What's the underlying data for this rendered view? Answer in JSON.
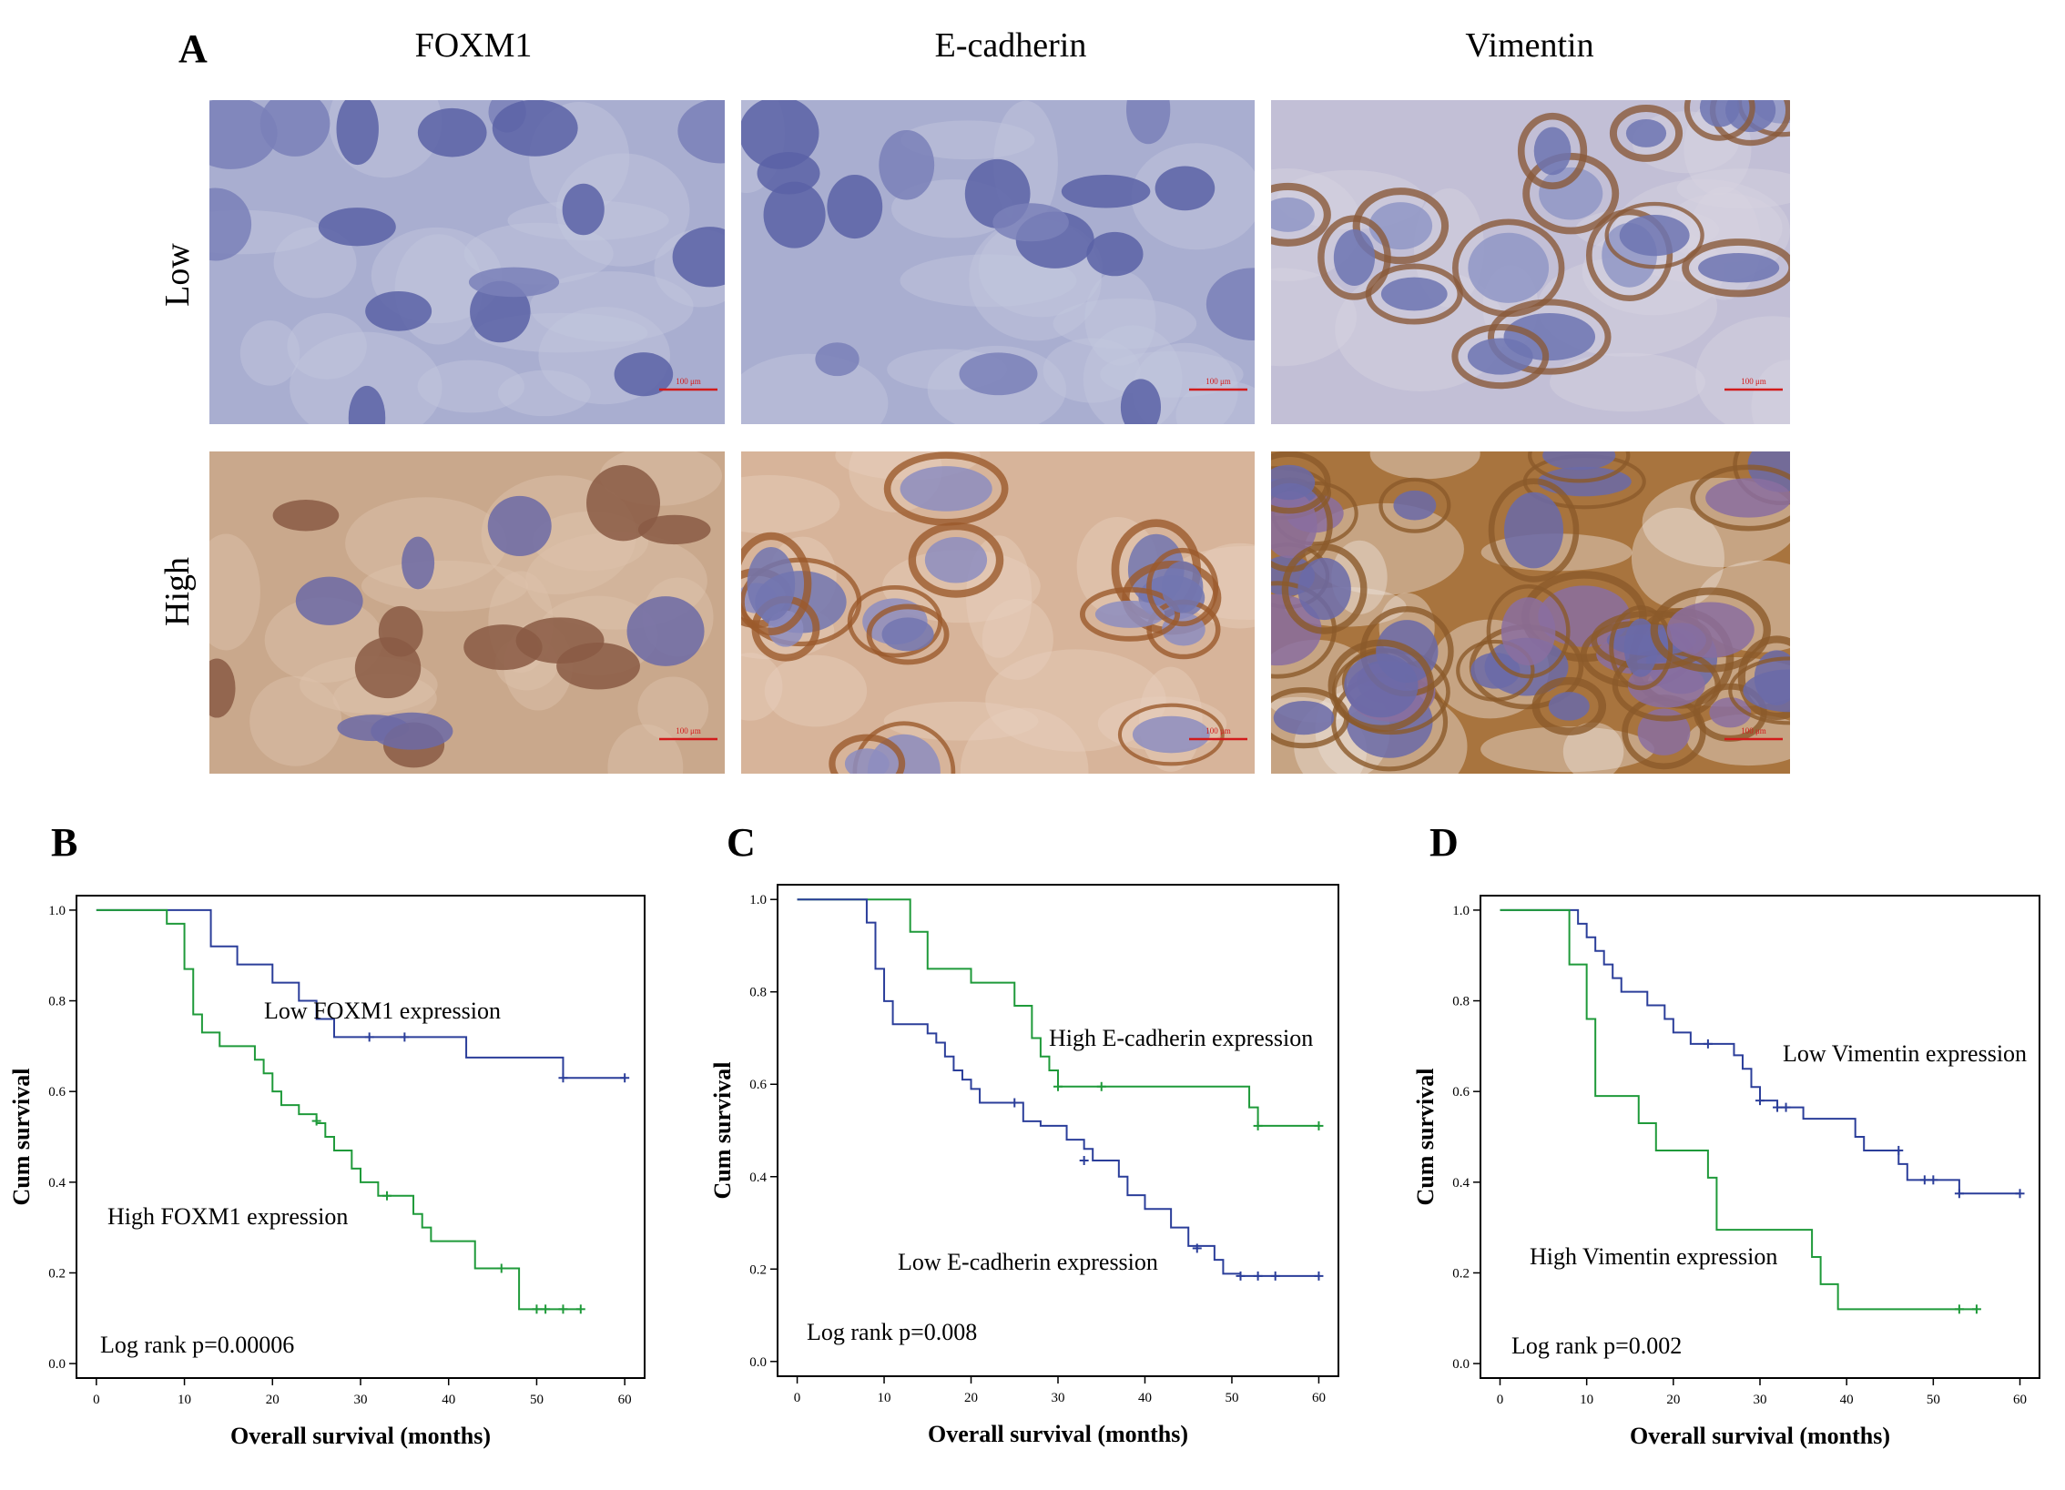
{
  "panel_a": {
    "label": "A",
    "columns": [
      "FOXM1",
      "E-cadherin",
      "Vimentin"
    ],
    "rows": [
      "Low",
      "High"
    ],
    "scale_bar_label": "100 μm"
  },
  "chart_data": [
    {
      "panel": "B",
      "type": "line",
      "subtype": "kaplan-meier",
      "xlabel": "Overall survival (months)",
      "ylabel": "Cum survival",
      "xlim": [
        0,
        60
      ],
      "ylim": [
        0,
        1.0
      ],
      "xticks": [
        0,
        10,
        20,
        30,
        40,
        50,
        60
      ],
      "yticks": [
        0.0,
        0.2,
        0.4,
        0.6,
        0.8,
        1.0
      ],
      "annotation": "Log rank p=0.00006",
      "series": [
        {
          "name": "Low FOXM1 expression",
          "color": "#2b3e9a",
          "steps": [
            [
              0,
              1.0
            ],
            [
              13,
              0.92
            ],
            [
              16,
              0.88
            ],
            [
              20,
              0.84
            ],
            [
              23,
              0.8
            ],
            [
              25,
              0.76
            ],
            [
              27,
              0.72
            ],
            [
              42,
              0.675
            ],
            [
              53,
              0.63
            ],
            [
              60,
              0.63
            ]
          ],
          "censored": [
            [
              31,
              0.72
            ],
            [
              35,
              0.72
            ],
            [
              53,
              0.63
            ],
            [
              60,
              0.63
            ]
          ]
        },
        {
          "name": "High FOXM1 expression",
          "color": "#1f9a3a",
          "steps": [
            [
              0,
              1.0
            ],
            [
              8,
              0.97
            ],
            [
              10,
              0.87
            ],
            [
              11,
              0.77
            ],
            [
              12,
              0.73
            ],
            [
              14,
              0.7
            ],
            [
              18,
              0.67
            ],
            [
              19,
              0.64
            ],
            [
              20,
              0.6
            ],
            [
              21,
              0.57
            ],
            [
              23,
              0.55
            ],
            [
              25,
              0.53
            ],
            [
              26,
              0.5
            ],
            [
              27,
              0.47
            ],
            [
              29,
              0.43
            ],
            [
              30,
              0.4
            ],
            [
              32,
              0.37
            ],
            [
              36,
              0.33
            ],
            [
              37,
              0.3
            ],
            [
              38,
              0.27
            ],
            [
              43,
              0.21
            ],
            [
              48,
              0.12
            ],
            [
              55,
              0.12
            ]
          ],
          "censored": [
            [
              25,
              0.535
            ],
            [
              33,
              0.37
            ],
            [
              46,
              0.21
            ],
            [
              50,
              0.12
            ],
            [
              51,
              0.12
            ],
            [
              53,
              0.12
            ],
            [
              55,
              0.12
            ]
          ]
        }
      ]
    },
    {
      "panel": "C",
      "type": "line",
      "subtype": "kaplan-meier",
      "xlabel": "Overall survival (months)",
      "ylabel": "Cum survival",
      "xlim": [
        0,
        60
      ],
      "ylim": [
        0,
        1.0
      ],
      "xticks": [
        0,
        10,
        20,
        30,
        40,
        50,
        60
      ],
      "yticks": [
        0.0,
        0.2,
        0.4,
        0.6,
        0.8,
        1.0
      ],
      "annotation": "Log rank p=0.008",
      "series": [
        {
          "name": "High E-cadherin expression",
          "color": "#1f9a3a",
          "steps": [
            [
              0,
              1.0
            ],
            [
              13,
              0.93
            ],
            [
              15,
              0.85
            ],
            [
              20,
              0.82
            ],
            [
              25,
              0.77
            ],
            [
              27,
              0.7
            ],
            [
              28,
              0.66
            ],
            [
              29,
              0.63
            ],
            [
              30,
              0.595
            ],
            [
              52,
              0.55
            ],
            [
              53,
              0.51
            ],
            [
              60,
              0.51
            ]
          ],
          "censored": [
            [
              30,
              0.595
            ],
            [
              35,
              0.595
            ],
            [
              53,
              0.51
            ],
            [
              60,
              0.51
            ]
          ]
        },
        {
          "name": "Low E-cadherin expression",
          "color": "#2b3e9a",
          "steps": [
            [
              0,
              1.0
            ],
            [
              8,
              0.95
            ],
            [
              9,
              0.85
            ],
            [
              10,
              0.78
            ],
            [
              11,
              0.73
            ],
            [
              15,
              0.71
            ],
            [
              16,
              0.69
            ],
            [
              17,
              0.66
            ],
            [
              18,
              0.63
            ],
            [
              19,
              0.61
            ],
            [
              20,
              0.59
            ],
            [
              21,
              0.56
            ],
            [
              24,
              0.56
            ],
            [
              26,
              0.52
            ],
            [
              28,
              0.51
            ],
            [
              31,
              0.48
            ],
            [
              33,
              0.46
            ],
            [
              34,
              0.435
            ],
            [
              37,
              0.4
            ],
            [
              38,
              0.36
            ],
            [
              40,
              0.33
            ],
            [
              43,
              0.29
            ],
            [
              45,
              0.25
            ],
            [
              48,
              0.22
            ],
            [
              49,
              0.19
            ],
            [
              51,
              0.185
            ],
            [
              60,
              0.185
            ]
          ],
          "censored": [
            [
              25,
              0.56
            ],
            [
              33,
              0.435
            ],
            [
              46,
              0.245
            ],
            [
              51,
              0.185
            ],
            [
              53,
              0.185
            ],
            [
              55,
              0.185
            ],
            [
              60,
              0.185
            ]
          ]
        }
      ]
    },
    {
      "panel": "D",
      "type": "line",
      "subtype": "kaplan-meier",
      "xlabel": "Overall survival (months)",
      "ylabel": "Cum survival",
      "xlim": [
        0,
        60
      ],
      "ylim": [
        0,
        1.0
      ],
      "xticks": [
        0,
        10,
        20,
        30,
        40,
        50,
        60
      ],
      "yticks": [
        0.0,
        0.2,
        0.4,
        0.6,
        0.8,
        1.0
      ],
      "annotation": "Log rank p=0.002",
      "series": [
        {
          "name": "Low Vimentin expression",
          "color": "#2b3e9a",
          "steps": [
            [
              0,
              1.0
            ],
            [
              9,
              0.97
            ],
            [
              10,
              0.94
            ],
            [
              11,
              0.91
            ],
            [
              12,
              0.88
            ],
            [
              13,
              0.85
            ],
            [
              14,
              0.82
            ],
            [
              17,
              0.79
            ],
            [
              19,
              0.76
            ],
            [
              20,
              0.73
            ],
            [
              22,
              0.705
            ],
            [
              27,
              0.68
            ],
            [
              28,
              0.65
            ],
            [
              29,
              0.61
            ],
            [
              30,
              0.58
            ],
            [
              32,
              0.565
            ],
            [
              35,
              0.54
            ],
            [
              41,
              0.5
            ],
            [
              42,
              0.47
            ],
            [
              46,
              0.44
            ],
            [
              47,
              0.405
            ],
            [
              53,
              0.375
            ],
            [
              60,
              0.375
            ]
          ],
          "censored": [
            [
              24,
              0.705
            ],
            [
              30,
              0.58
            ],
            [
              32,
              0.565
            ],
            [
              33,
              0.565
            ],
            [
              46,
              0.47
            ],
            [
              49,
              0.405
            ],
            [
              50,
              0.405
            ],
            [
              53,
              0.375
            ],
            [
              60,
              0.375
            ]
          ]
        },
        {
          "name": "High Vimentin expression",
          "color": "#1f9a3a",
          "steps": [
            [
              0,
              1.0
            ],
            [
              8,
              0.88
            ],
            [
              10,
              0.76
            ],
            [
              11,
              0.59
            ],
            [
              16,
              0.53
            ],
            [
              18,
              0.47
            ],
            [
              24,
              0.41
            ],
            [
              25,
              0.295
            ],
            [
              36,
              0.235
            ],
            [
              37,
              0.175
            ],
            [
              39,
              0.12
            ],
            [
              55,
              0.12
            ]
          ],
          "censored": [
            [
              53,
              0.12
            ],
            [
              55,
              0.12
            ]
          ]
        }
      ]
    }
  ]
}
